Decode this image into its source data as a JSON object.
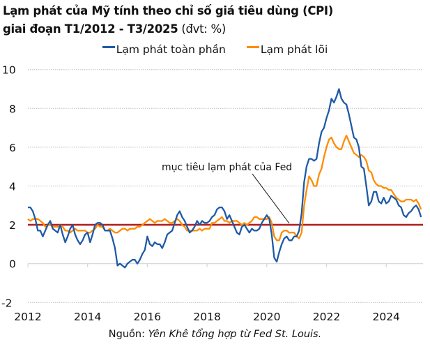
{
  "title": {
    "line1": "Lạm phát của Mỹ tính theo chỉ số giá tiêu dùng (CPI)",
    "line2_bold": "giai đoạn T1/2012 - T3/2025",
    "line2_unit": " (đvt: %)"
  },
  "source": {
    "label": "Nguồn: ",
    "text": "Yên Khê tổng hợp từ Fed St. Louis."
  },
  "colors": {
    "headline": "#1f5aa6",
    "core": "#ff8c00",
    "target": "#b22222",
    "grid": "#bdbdbd"
  },
  "chart_data": {
    "type": "line",
    "title": "Lạm phát của Mỹ tính theo chỉ số giá tiêu dùng (CPI) giai đoạn T1/2012 - T3/2025 (đvt: %)",
    "xlabel": "",
    "ylabel": "",
    "x_start": "2012-01",
    "x_end": "2025-03",
    "frequency": "monthly",
    "xticks": [
      "2012",
      "2014",
      "2016",
      "2018",
      "2020",
      "2022",
      "2024"
    ],
    "yticks": [
      "-2",
      "0",
      "2",
      "4",
      "6",
      "8",
      "10"
    ],
    "ylim": [
      -2,
      10
    ],
    "grid": "horizontal-dotted",
    "legend_position": "top-center",
    "annotation": "mục tiêu lạm phát của Fed",
    "reference_line": {
      "name": "Mục tiêu lạm phát của Fed",
      "value": 2
    },
    "series": [
      {
        "name": "Lạm phát toàn phần",
        "values": [
          2.9,
          2.9,
          2.7,
          2.3,
          1.7,
          1.7,
          1.4,
          1.7,
          2.0,
          2.2,
          1.8,
          1.7,
          1.6,
          2.0,
          1.5,
          1.1,
          1.4,
          1.8,
          2.0,
          1.5,
          1.2,
          1.0,
          1.2,
          1.5,
          1.6,
          1.1,
          1.5,
          2.0,
          2.1,
          2.1,
          2.0,
          1.7,
          1.7,
          1.7,
          1.3,
          0.8,
          -0.1,
          0.0,
          -0.1,
          -0.2,
          0.0,
          0.1,
          0.2,
          0.2,
          0.0,
          0.2,
          0.5,
          0.7,
          1.4,
          1.0,
          0.9,
          1.1,
          1.0,
          1.0,
          0.8,
          1.1,
          1.5,
          1.6,
          1.7,
          2.1,
          2.5,
          2.7,
          2.4,
          2.2,
          1.9,
          1.6,
          1.7,
          1.9,
          2.2,
          2.0,
          2.2,
          2.1,
          2.1,
          2.2,
          2.4,
          2.5,
          2.8,
          2.9,
          2.9,
          2.7,
          2.3,
          2.5,
          2.2,
          1.9,
          1.6,
          1.5,
          1.9,
          2.0,
          1.8,
          1.6,
          1.8,
          1.7,
          1.7,
          1.8,
          2.1,
          2.3,
          2.5,
          2.3,
          1.5,
          0.3,
          0.1,
          0.6,
          1.0,
          1.3,
          1.4,
          1.2,
          1.2,
          1.4,
          1.4,
          1.7,
          2.6,
          4.2,
          5.0,
          5.4,
          5.4,
          5.3,
          5.4,
          6.2,
          6.8,
          7.0,
          7.5,
          7.9,
          8.5,
          8.3,
          8.6,
          9.0,
          8.5,
          8.3,
          8.2,
          7.7,
          7.1,
          6.5,
          6.4,
          6.0,
          5.0,
          4.9,
          4.0,
          3.0,
          3.2,
          3.7,
          3.7,
          3.2,
          3.1,
          3.4,
          3.1,
          3.2,
          3.5,
          3.4,
          3.3,
          3.0,
          2.9,
          2.5,
          2.4,
          2.6,
          2.7,
          2.9,
          3.0,
          2.8,
          2.4
        ]
      },
      {
        "name": "Lạm phát lõi",
        "values": [
          2.3,
          2.2,
          2.3,
          2.3,
          2.3,
          2.2,
          2.1,
          1.9,
          2.0,
          2.0,
          1.9,
          1.9,
          1.9,
          2.0,
          1.9,
          1.7,
          1.7,
          1.6,
          1.7,
          1.8,
          1.7,
          1.7,
          1.7,
          1.7,
          1.6,
          1.6,
          1.7,
          1.8,
          2.0,
          1.9,
          1.9,
          1.7,
          1.7,
          1.8,
          1.7,
          1.6,
          1.6,
          1.7,
          1.8,
          1.8,
          1.7,
          1.8,
          1.8,
          1.8,
          1.9,
          1.9,
          2.0,
          2.1,
          2.2,
          2.3,
          2.2,
          2.1,
          2.2,
          2.2,
          2.2,
          2.3,
          2.2,
          2.1,
          2.1,
          2.2,
          2.3,
          2.2,
          2.0,
          1.9,
          1.7,
          1.7,
          1.7,
          1.7,
          1.7,
          1.8,
          1.7,
          1.8,
          1.8,
          1.8,
          2.1,
          2.1,
          2.2,
          2.3,
          2.4,
          2.2,
          2.2,
          2.1,
          2.2,
          2.2,
          2.2,
          2.1,
          2.0,
          2.1,
          2.0,
          2.1,
          2.2,
          2.4,
          2.4,
          2.3,
          2.3,
          2.3,
          2.3,
          2.4,
          2.1,
          1.4,
          1.2,
          1.2,
          1.6,
          1.7,
          1.7,
          1.6,
          1.6,
          1.6,
          1.4,
          1.3,
          1.6,
          3.0,
          3.8,
          4.5,
          4.3,
          4.0,
          4.0,
          4.6,
          4.9,
          5.5,
          6.0,
          6.4,
          6.5,
          6.2,
          6.0,
          5.9,
          5.9,
          6.3,
          6.6,
          6.3,
          6.0,
          5.7,
          5.6,
          5.5,
          5.6,
          5.5,
          5.3,
          4.8,
          4.7,
          4.3,
          4.1,
          4.0,
          4.0,
          3.9,
          3.9,
          3.8,
          3.8,
          3.6,
          3.4,
          3.3,
          3.2,
          3.2,
          3.3,
          3.3,
          3.3,
          3.2,
          3.3,
          3.1,
          2.8
        ]
      }
    ]
  }
}
